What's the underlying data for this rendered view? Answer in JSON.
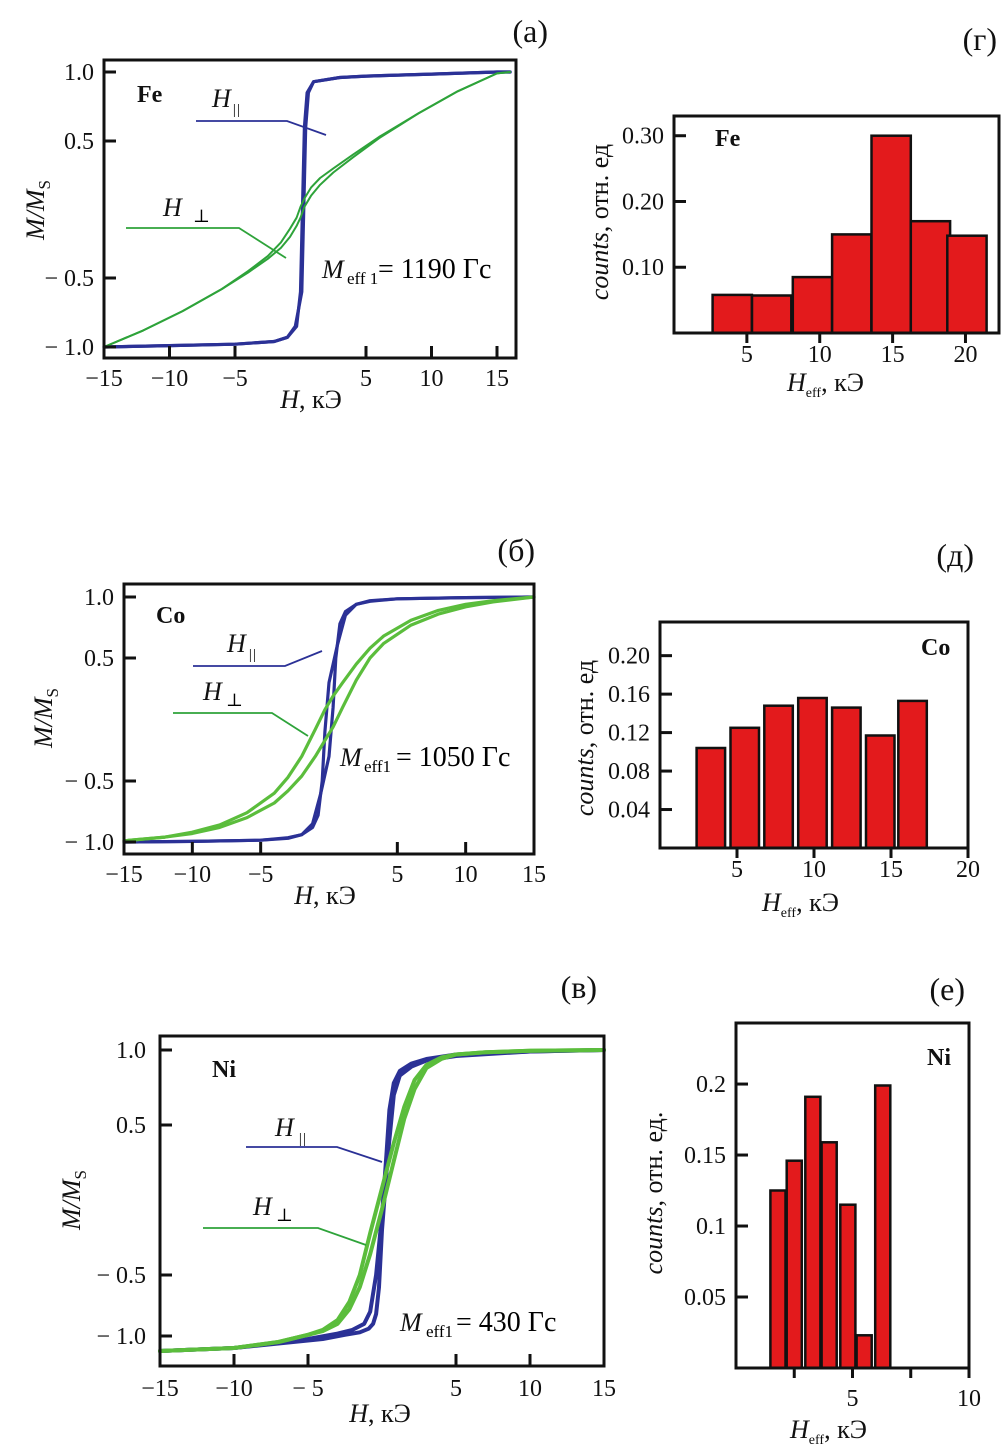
{
  "figure": {
    "colors": {
      "parallel": "#2b3196",
      "perpendicular_fe": "#2ea33a",
      "perpendicular": "#5bbd3c",
      "bars": "#e31a1c"
    }
  },
  "chart_data": [
    {
      "id": "a",
      "type": "line",
      "panel_label": "(a)",
      "element": "Fe",
      "title": "",
      "xlabel": "H, кЭ",
      "xlabel_var": "H",
      "xlabel_unit": ", кЭ",
      "ylabel": "M/M_S",
      "xlim": [
        -15,
        16.5
      ],
      "ylim": [
        -1.0,
        1.0
      ],
      "xticks": [
        -15,
        -10,
        -5,
        5,
        10,
        15
      ],
      "xtick_labels": [
        "−15",
        "−10",
        "−5",
        "5",
        "10",
        "15"
      ],
      "yticks": [
        1.0,
        0.5,
        -0.5,
        -1.0
      ],
      "ytick_labels": [
        "1.0",
        "0.5",
        "− 0.5",
        "− 1.0"
      ],
      "grid": false,
      "annotation": {
        "var": "M",
        "sub": "eff 1",
        "text": "= 1190 Гс"
      },
      "legend": [
        {
          "name": "H∥",
          "var": "H",
          "sub": "||",
          "series": "parallel"
        },
        {
          "name": "H⊥",
          "var": "H",
          "sub": "⊥",
          "series": "perpendicular"
        }
      ],
      "series": [
        {
          "name": "H∥ (increasing)",
          "kind": "parallel",
          "x": [
            -15,
            -10,
            -5,
            -2,
            -1,
            -0.4,
            0.1,
            0.2,
            0.3,
            0.4,
            0.6,
            1,
            3,
            5,
            10,
            15,
            16
          ],
          "y": [
            -1.0,
            -0.99,
            -0.98,
            -0.96,
            -0.93,
            -0.85,
            -0.6,
            -0.2,
            0.2,
            0.6,
            0.85,
            0.93,
            0.96,
            0.97,
            0.985,
            1.0,
            1.0
          ]
        },
        {
          "name": "H∥ (decreasing)",
          "kind": "parallel",
          "x": [
            16,
            15,
            10,
            5,
            3,
            1,
            0.5,
            0.3,
            0.2,
            0.1,
            0,
            -0.3,
            -1,
            -2,
            -5,
            -10,
            -15
          ],
          "y": [
            1.0,
            1.0,
            0.985,
            0.97,
            0.96,
            0.93,
            0.85,
            0.6,
            0.2,
            -0.2,
            -0.6,
            -0.85,
            -0.93,
            -0.96,
            -0.98,
            -0.99,
            -1.0
          ]
        },
        {
          "name": "H⊥ (increasing)",
          "kind": "perpendicular",
          "x": [
            -15,
            -12,
            -9,
            -6,
            -4,
            -2.5,
            -1.5,
            -0.8,
            -0.3,
            0,
            0.3,
            0.8,
            1.5,
            2.5,
            4,
            6,
            9,
            12,
            15,
            16
          ],
          "y": [
            -1.0,
            -0.88,
            -0.74,
            -0.58,
            -0.46,
            -0.36,
            -0.28,
            -0.2,
            -0.12,
            -0.06,
            0.02,
            0.1,
            0.18,
            0.27,
            0.38,
            0.52,
            0.7,
            0.86,
            0.99,
            1.0
          ]
        },
        {
          "name": "H⊥ (decreasing)",
          "kind": "perpendicular",
          "x": [
            16,
            15,
            12,
            9,
            6,
            4,
            2.5,
            1.5,
            0.8,
            0.3,
            0,
            -0.3,
            -0.8,
            -1.5,
            -2.5,
            -4,
            -6,
            -9,
            -12,
            -15
          ],
          "y": [
            1.0,
            0.99,
            0.86,
            0.7,
            0.53,
            0.4,
            0.3,
            0.23,
            0.16,
            0.08,
            0.02,
            -0.06,
            -0.14,
            -0.24,
            -0.34,
            -0.45,
            -0.58,
            -0.74,
            -0.88,
            -1.0
          ]
        }
      ]
    },
    {
      "id": "b",
      "type": "line",
      "panel_label": "(б)",
      "element": "Co",
      "title": "",
      "xlabel": "H, кЭ",
      "xlabel_var": "H",
      "xlabel_unit": ", кЭ",
      "ylabel": "M/M_S",
      "xlim": [
        -15,
        15
      ],
      "ylim": [
        -1.0,
        1.0
      ],
      "xticks": [
        -15,
        -10,
        -5,
        5,
        10,
        15
      ],
      "xtick_labels": [
        "−15",
        "−10",
        "−5",
        "5",
        "10",
        "15"
      ],
      "yticks": [
        1.0,
        0.5,
        -0.5,
        -1.0
      ],
      "ytick_labels": [
        "1.0",
        "0.5",
        "− 0.5",
        "− 1.0"
      ],
      "grid": false,
      "annotation": {
        "var": "M",
        "sub": "eff1",
        "text": "= 1050 Гс"
      },
      "legend": [
        {
          "name": "H∥",
          "var": "H",
          "sub": "||",
          "series": "parallel"
        },
        {
          "name": "H⊥",
          "var": "H",
          "sub": "⊥",
          "series": "perpendicular"
        }
      ],
      "series": [
        {
          "name": "H∥ (increasing)",
          "kind": "parallel",
          "x": [
            -15,
            -10,
            -5,
            -3,
            -2,
            -1.2,
            -0.6,
            0,
            0.3,
            0.5,
            0.8,
            1.2,
            2,
            3,
            5,
            10,
            15
          ],
          "y": [
            -1.0,
            -0.995,
            -0.985,
            -0.97,
            -0.94,
            -0.85,
            -0.6,
            -0.3,
            0.1,
            0.5,
            0.78,
            0.88,
            0.94,
            0.965,
            0.985,
            0.995,
            1.0
          ]
        },
        {
          "name": "H∥ (decreasing)",
          "kind": "parallel",
          "x": [
            15,
            10,
            5,
            3,
            2,
            1.2,
            0.6,
            0,
            -0.3,
            -0.5,
            -0.8,
            -1.2,
            -2,
            -3,
            -5,
            -10,
            -15
          ],
          "y": [
            1.0,
            0.995,
            0.985,
            0.97,
            0.94,
            0.85,
            0.6,
            0.3,
            -0.1,
            -0.5,
            -0.78,
            -0.88,
            -0.94,
            -0.965,
            -0.985,
            -0.995,
            -1.0
          ]
        },
        {
          "name": "H⊥ (increasing)",
          "kind": "perpendicular",
          "x": [
            -15,
            -12,
            -10,
            -8,
            -6,
            -4,
            -3,
            -2,
            -1,
            -0.3,
            0.3,
            1,
            2,
            3,
            4,
            6,
            8,
            10,
            12,
            15
          ],
          "y": [
            -0.99,
            -0.96,
            -0.93,
            -0.88,
            -0.8,
            -0.68,
            -0.58,
            -0.46,
            -0.3,
            -0.17,
            -0.06,
            0.1,
            0.32,
            0.5,
            0.62,
            0.77,
            0.86,
            0.92,
            0.96,
            1.0
          ]
        },
        {
          "name": "H⊥ (decreasing)",
          "kind": "perpendicular",
          "x": [
            15,
            12,
            10,
            8,
            6,
            4,
            3,
            2,
            1,
            0.3,
            -0.3,
            -1,
            -2,
            -3,
            -4,
            -6,
            -8,
            -10,
            -12,
            -15
          ],
          "y": [
            1.0,
            0.97,
            0.94,
            0.89,
            0.81,
            0.68,
            0.58,
            0.45,
            0.3,
            0.19,
            0.08,
            -0.08,
            -0.3,
            -0.47,
            -0.6,
            -0.76,
            -0.86,
            -0.92,
            -0.96,
            -0.99
          ]
        }
      ]
    },
    {
      "id": "c",
      "type": "line",
      "panel_label": "(в)",
      "element": "Ni",
      "title": "",
      "xlabel": "H, кЭ",
      "xlabel_var": "H",
      "xlabel_unit": ", кЭ",
      "ylabel": "M/M_S",
      "xlim": [
        -15,
        15
      ],
      "ylim": [
        -1.0,
        1.0
      ],
      "xticks": [
        -15,
        -10,
        -5,
        5,
        10,
        15
      ],
      "xtick_labels": [
        "−15",
        "−10",
        "− 5",
        "5",
        "10",
        "15"
      ],
      "yticks": [
        1.0,
        0.5,
        -0.5,
        -1.0
      ],
      "ytick_labels": [
        "1.0",
        "0.5",
        "− 0.5",
        "− 1.0"
      ],
      "grid": false,
      "annotation": {
        "var": "M",
        "sub": "eff1",
        "text": " = 430 Гс"
      },
      "legend": [
        {
          "name": "H∥",
          "var": "H",
          "sub": "||",
          "series": "parallel"
        },
        {
          "name": "H⊥",
          "var": "H",
          "sub": "⊥",
          "series": "perpendicular"
        }
      ],
      "series": [
        {
          "name": "H∥ (increasing)",
          "kind": "parallel",
          "x": [
            -15,
            -10,
            -5,
            -3,
            -2,
            -1.2,
            -0.8,
            -0.4,
            0,
            0.3,
            0.5,
            0.8,
            1.2,
            2,
            3,
            5,
            10,
            15
          ],
          "y": [
            -1.05,
            -1.04,
            -1.01,
            -0.98,
            -0.95,
            -0.9,
            -0.8,
            -0.5,
            -0.1,
            0.3,
            0.6,
            0.78,
            0.86,
            0.91,
            0.94,
            0.97,
            0.99,
            1.0
          ]
        },
        {
          "name": "H∥ (decreasing)",
          "kind": "parallel",
          "x": [
            15,
            10,
            5,
            3,
            2,
            1.2,
            0.8,
            0.4,
            0,
            -0.2,
            -0.4,
            -0.6,
            -0.9,
            -1.5,
            -2.5,
            -4,
            -6,
            -10,
            -15
          ],
          "y": [
            1.0,
            0.99,
            0.96,
            0.93,
            0.89,
            0.83,
            0.7,
            0.3,
            -0.2,
            -0.6,
            -0.82,
            -0.9,
            -0.94,
            -0.97,
            -0.99,
            -1.01,
            -1.02,
            -1.04,
            -1.05
          ]
        },
        {
          "name": "H⊥ (increasing)",
          "kind": "perpendicular",
          "x": [
            -15,
            -10,
            -7,
            -5,
            -4,
            -3,
            -2.2,
            -1.5,
            -0.8,
            0,
            0.8,
            1.5,
            2.2,
            3,
            4,
            5,
            7,
            10,
            15
          ],
          "y": [
            -1.05,
            -1.04,
            -1.02,
            -0.99,
            -0.95,
            -0.87,
            -0.72,
            -0.5,
            -0.22,
            0.08,
            0.38,
            0.62,
            0.8,
            0.9,
            0.95,
            0.97,
            0.985,
            0.995,
            1.0
          ]
        },
        {
          "name": "H⊥ (decreasing)",
          "kind": "perpendicular",
          "x": [
            15,
            10,
            7,
            5,
            4,
            3,
            2.2,
            1.5,
            0.8,
            0,
            -0.8,
            -1.5,
            -2.2,
            -3,
            -4,
            -5,
            -7,
            -10,
            -15
          ],
          "y": [
            1.0,
            0.995,
            0.985,
            0.97,
            0.94,
            0.88,
            0.74,
            0.54,
            0.26,
            -0.06,
            -0.36,
            -0.6,
            -0.78,
            -0.9,
            -0.96,
            -0.99,
            -1.02,
            -1.04,
            -1.05
          ]
        }
      ]
    },
    {
      "id": "g",
      "type": "bar",
      "panel_label": "(г)",
      "element": "Fe",
      "title": "",
      "xlabel": "H_eff, кЭ",
      "xlabel_var": "H",
      "xlabel_sub": "eff",
      "xlabel_unit": ", кЭ",
      "ylabel": "counts, отн. ед",
      "ylabel_var": "counts",
      "ylabel_unit": ", отн. ед",
      "xlim": [
        0,
        22.3
      ],
      "ylim": [
        0.0,
        0.33
      ],
      "xticks": [
        5,
        10,
        15,
        20
      ],
      "xtick_labels": [
        "5",
        "10",
        "15",
        "20"
      ],
      "yticks": [
        0.1,
        0.2,
        0.3
      ],
      "ytick_labels": [
        "0.10",
        "0.20",
        "0.30"
      ],
      "grid": false,
      "bin_width": 2.7,
      "categories": [
        4.0,
        6.7,
        9.5,
        12.2,
        14.9,
        17.6,
        20.1
      ],
      "values": [
        0.058,
        0.057,
        0.085,
        0.15,
        0.3,
        0.17,
        0.148
      ]
    },
    {
      "id": "d",
      "type": "bar",
      "panel_label": "(д)",
      "element": "Co",
      "title": "",
      "xlabel": "H_eff, кЭ",
      "xlabel_var": "H",
      "xlabel_sub": "eff",
      "xlabel_unit": ", кЭ",
      "ylabel": "counts, отн. ед",
      "ylabel_var": "counts",
      "ylabel_unit": ", отн. ед",
      "xlim": [
        0,
        20
      ],
      "ylim": [
        0.0,
        0.235
      ],
      "xticks": [
        5,
        10,
        15,
        20
      ],
      "xtick_labels": [
        "5",
        "10",
        "15",
        "20"
      ],
      "yticks": [
        0.04,
        0.08,
        0.12,
        0.16,
        0.2
      ],
      "ytick_labels": [
        "0.04",
        "0.08",
        "0.12",
        "0.16",
        "0.20"
      ],
      "grid": false,
      "bin_width": 1.85,
      "categories": [
        3.3,
        5.5,
        7.7,
        9.9,
        12.1,
        14.3,
        16.4
      ],
      "values": [
        0.104,
        0.125,
        0.148,
        0.156,
        0.146,
        0.117,
        0.153
      ]
    },
    {
      "id": "e",
      "type": "bar",
      "panel_label": "(е)",
      "element": "Ni",
      "title": "",
      "xlabel": "H_eff, кЭ",
      "xlabel_var": "H",
      "xlabel_sub": "eff",
      "xlabel_unit": ", кЭ",
      "ylabel": "counts, отн. ед.",
      "ylabel_var": "counts",
      "ylabel_unit": ", отн. ед.",
      "xlim": [
        0,
        10
      ],
      "ylim": [
        0.0,
        0.243
      ],
      "xticks": [
        2.5,
        5,
        7.5,
        10
      ],
      "xtick_labels": [
        "",
        "5",
        "",
        "10"
      ],
      "yticks": [
        0.05,
        0.1,
        0.15,
        0.2
      ],
      "ytick_labels": [
        "0.05",
        "0.1",
        "0.15",
        "0.2"
      ],
      "grid": false,
      "bin_width": 0.65,
      "categories": [
        1.8,
        2.5,
        3.3,
        4.0,
        4.8,
        5.5,
        6.3
      ],
      "values": [
        0.125,
        0.146,
        0.191,
        0.159,
        0.115,
        0.023,
        0.199
      ]
    }
  ]
}
